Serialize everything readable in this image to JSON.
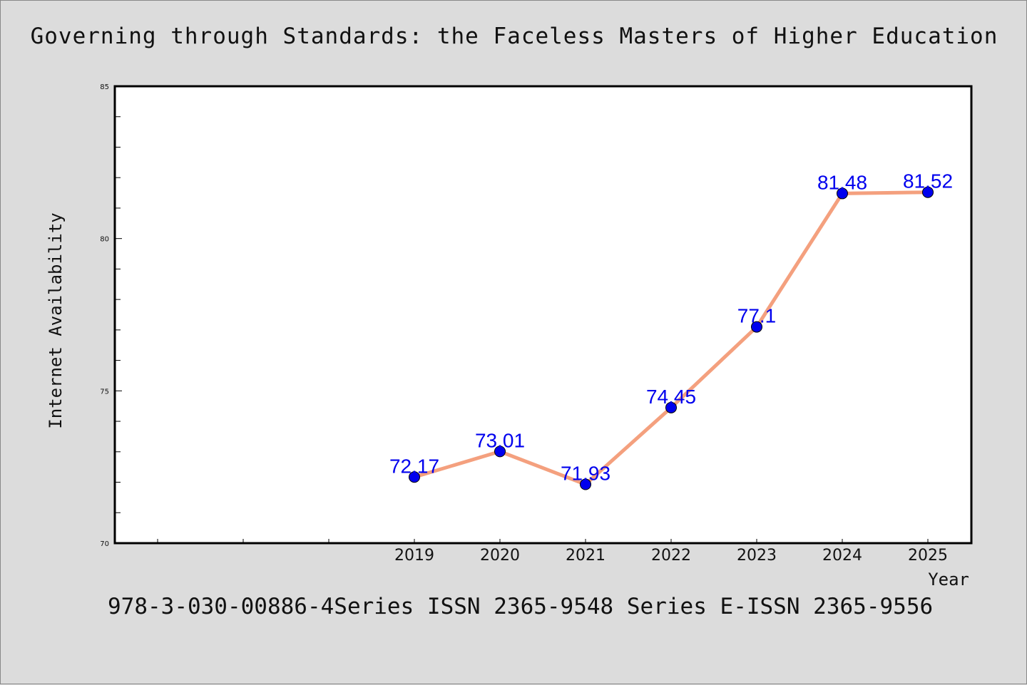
{
  "title": "Governing through Standards: the Faceless Masters of Higher Education",
  "footer": "978-3-030-00886-4Series ISSN 2365-9548 Series E-ISSN 2365-9556",
  "chart_data": {
    "type": "line",
    "x": [
      "2019",
      "2020",
      "2021",
      "2022",
      "2023",
      "2024",
      "2025"
    ],
    "series": [
      {
        "values": [
          72.17,
          73.01,
          71.93,
          74.45,
          77.1,
          81.48,
          81.52
        ]
      }
    ],
    "data_labels": [
      "72.17",
      "73.01",
      "71.93",
      "74.45",
      "77.1",
      "81.48",
      "81.52"
    ],
    "xlabel": "Year",
    "ylabel": "Internet Availability",
    "ylim": [
      70,
      85
    ],
    "y_ticks": [
      70,
      75,
      80,
      85
    ],
    "grid": false,
    "line_color": "#f4a07e",
    "marker_color": "#0000ee",
    "label_color": "#0000ee"
  }
}
